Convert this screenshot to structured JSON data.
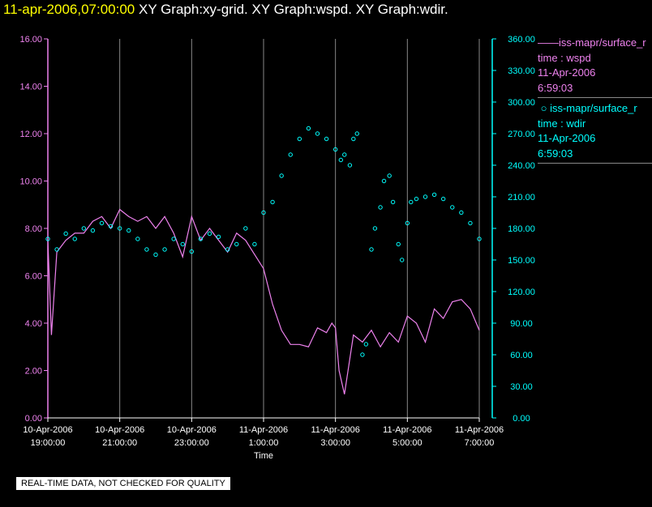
{
  "header": {
    "timestamp": "11-apr-2006,07:00:00",
    "graphs": " XY Graph:xy-grid.  XY Graph:wspd.  XY Graph:wdir."
  },
  "legend": {
    "wspd": {
      "name": "iss-mapr/surface_r",
      "var": "time : wspd",
      "date": "11-Apr-2006",
      "time": "6:59:03",
      "color": "#ee82ee"
    },
    "wdir": {
      "name": "iss-mapr/surface_r",
      "var": "time : wdir",
      "date": "11-Apr-2006",
      "time": "6:59:03",
      "color": "#00ffff"
    }
  },
  "footer": "REAL-TIME DATA, NOT CHECKED FOR QUALITY",
  "chart_data": {
    "type": "line",
    "xlabel": "Time",
    "x_range_hours": [
      0,
      12
    ],
    "x_ticks": [
      {
        "h": 0,
        "date": "10-Apr-2006",
        "time": "19:00:00"
      },
      {
        "h": 2,
        "date": "10-Apr-2006",
        "time": "21:00:00"
      },
      {
        "h": 4,
        "date": "10-Apr-2006",
        "time": "23:00:00"
      },
      {
        "h": 6,
        "date": "11-Apr-2006",
        "time": "1:00:00"
      },
      {
        "h": 8,
        "date": "11-Apr-2006",
        "time": "3:00:00"
      },
      {
        "h": 10,
        "date": "11-Apr-2006",
        "time": "5:00:00"
      },
      {
        "h": 12,
        "date": "11-Apr-2006",
        "time": "7:00:00"
      }
    ],
    "y_left": {
      "ylim": [
        0,
        16
      ],
      "ticks": [
        "0.00",
        "2.00",
        "4.00",
        "6.00",
        "8.00",
        "10.00",
        "12.00",
        "14.00",
        "16.00"
      ],
      "color": "#ee82ee"
    },
    "y_right": {
      "ylim": [
        0,
        360
      ],
      "ticks": [
        "0.00",
        "30.00",
        "60.00",
        "90.00",
        "120.00",
        "150.00",
        "180.00",
        "210.00",
        "240.00",
        "270.00",
        "300.00",
        "330.00",
        "360.00"
      ],
      "color": "#00ffff"
    },
    "grid": "vertical",
    "series": [
      {
        "name": "iss-mapr/surface_r",
        "axis": "left",
        "style": "line",
        "color": "#ee82ee",
        "x": [
          0.0,
          0.1,
          0.25,
          0.5,
          0.75,
          1.0,
          1.25,
          1.5,
          1.75,
          2.0,
          2.25,
          2.5,
          2.75,
          3.0,
          3.25,
          3.5,
          3.75,
          4.0,
          4.25,
          4.5,
          4.75,
          5.0,
          5.25,
          5.5,
          5.75,
          6.0,
          6.25,
          6.5,
          6.75,
          7.0,
          7.25,
          7.5,
          7.75,
          7.9,
          8.0,
          8.1,
          8.25,
          8.5,
          8.75,
          9.0,
          9.25,
          9.5,
          9.75,
          10.0,
          10.25,
          10.5,
          10.75,
          11.0,
          11.25,
          11.5,
          11.75,
          12.0
        ],
        "values": [
          7.5,
          3.5,
          7.0,
          7.5,
          7.8,
          7.8,
          8.3,
          8.5,
          8.0,
          8.8,
          8.5,
          8.3,
          8.5,
          8.0,
          8.5,
          7.8,
          6.8,
          8.5,
          7.5,
          8.0,
          7.5,
          7.0,
          7.8,
          7.5,
          6.9,
          6.3,
          4.8,
          3.7,
          3.1,
          3.1,
          3.0,
          3.8,
          3.6,
          4.0,
          3.8,
          2.0,
          1.0,
          3.5,
          3.2,
          3.7,
          3.0,
          3.6,
          3.2,
          4.3,
          4.0,
          3.2,
          4.6,
          4.2,
          4.9,
          5.0,
          4.6,
          3.7
        ]
      },
      {
        "name": "iss-mapr/surface_r",
        "axis": "right",
        "style": "circle",
        "color": "#00ffff",
        "x": [
          0.0,
          0.25,
          0.5,
          0.75,
          1.0,
          1.25,
          1.5,
          1.75,
          2.0,
          2.25,
          2.5,
          2.75,
          3.0,
          3.25,
          3.5,
          3.75,
          4.0,
          4.25,
          4.5,
          4.75,
          5.0,
          5.25,
          5.5,
          5.75,
          6.0,
          6.25,
          6.5,
          6.75,
          7.0,
          7.25,
          7.5,
          7.75,
          8.0,
          8.15,
          8.25,
          8.4,
          8.5,
          8.6,
          8.75,
          8.85,
          9.0,
          9.1,
          9.25,
          9.35,
          9.5,
          9.6,
          9.75,
          9.85,
          10.0,
          10.1,
          10.25,
          10.5,
          10.75,
          11.0,
          11.25,
          11.5,
          11.75,
          12.0
        ],
        "values": [
          170,
          160,
          175,
          170,
          180,
          178,
          185,
          182,
          180,
          178,
          170,
          160,
          155,
          160,
          170,
          165,
          158,
          170,
          175,
          172,
          160,
          165,
          180,
          165,
          195,
          205,
          230,
          250,
          265,
          275,
          270,
          265,
          255,
          245,
          250,
          240,
          265,
          270,
          60,
          70,
          160,
          180,
          200,
          225,
          230,
          205,
          165,
          150,
          185,
          205,
          208,
          210,
          212,
          208,
          200,
          195,
          185,
          170
        ]
      }
    ]
  }
}
